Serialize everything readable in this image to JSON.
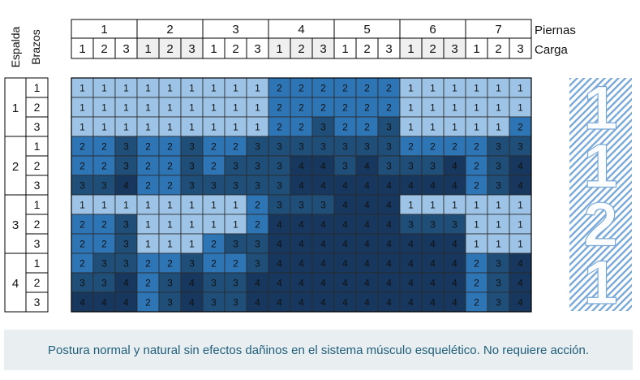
{
  "chart_data": {
    "type": "heatmap",
    "col_header_labels": {
      "legs": "Piernas",
      "load": "Carga"
    },
    "row_header_labels": {
      "back": "Espalda",
      "arms": "Brazos"
    },
    "legs_values": [
      "1",
      "2",
      "3",
      "4",
      "5",
      "6",
      "7"
    ],
    "load_values": [
      "1",
      "2",
      "3"
    ],
    "back_values": [
      "1",
      "2",
      "3",
      "4"
    ],
    "arms_values": [
      "1",
      "2",
      "3"
    ],
    "matrix": [
      [
        1,
        1,
        1,
        1,
        1,
        1,
        1,
        1,
        1,
        2,
        2,
        2,
        2,
        2,
        2,
        1,
        1,
        1,
        1,
        1,
        1
      ],
      [
        1,
        1,
        1,
        1,
        1,
        1,
        1,
        1,
        1,
        2,
        2,
        2,
        2,
        2,
        2,
        1,
        1,
        1,
        1,
        1,
        1
      ],
      [
        1,
        1,
        1,
        1,
        1,
        1,
        1,
        1,
        1,
        2,
        2,
        3,
        2,
        2,
        3,
        1,
        1,
        1,
        1,
        1,
        2
      ],
      [
        2,
        2,
        3,
        2,
        2,
        3,
        2,
        2,
        3,
        3,
        3,
        3,
        3,
        3,
        3,
        2,
        2,
        2,
        2,
        3,
        3
      ],
      [
        2,
        2,
        3,
        2,
        2,
        3,
        2,
        3,
        3,
        3,
        4,
        4,
        3,
        4,
        3,
        3,
        3,
        4,
        2,
        3,
        4
      ],
      [
        3,
        3,
        4,
        2,
        2,
        3,
        3,
        3,
        3,
        3,
        4,
        4,
        4,
        4,
        4,
        4,
        4,
        4,
        2,
        3,
        4
      ],
      [
        1,
        1,
        1,
        1,
        1,
        1,
        1,
        1,
        2,
        3,
        3,
        3,
        4,
        4,
        4,
        1,
        1,
        1,
        1,
        1,
        1
      ],
      [
        2,
        2,
        3,
        1,
        1,
        1,
        1,
        1,
        2,
        4,
        4,
        4,
        4,
        4,
        4,
        3,
        3,
        3,
        1,
        1,
        1
      ],
      [
        2,
        2,
        3,
        1,
        1,
        1,
        2,
        3,
        3,
        4,
        4,
        4,
        4,
        4,
        4,
        4,
        4,
        4,
        1,
        1,
        1
      ],
      [
        2,
        3,
        3,
        2,
        2,
        3,
        2,
        2,
        3,
        4,
        4,
        4,
        4,
        4,
        4,
        4,
        4,
        4,
        2,
        3,
        4
      ],
      [
        3,
        3,
        4,
        2,
        3,
        4,
        3,
        3,
        4,
        4,
        4,
        4,
        4,
        4,
        4,
        4,
        4,
        4,
        2,
        3,
        4
      ],
      [
        4,
        4,
        4,
        2,
        3,
        4,
        3,
        3,
        4,
        4,
        4,
        4,
        4,
        4,
        4,
        4,
        4,
        4,
        2,
        3,
        4
      ]
    ],
    "colors": {
      "1": "#9dc3e6",
      "2": "#2e75b6",
      "3": "#1f4e79",
      "4": "#17375e"
    },
    "text_colors": {
      "1": "#111111",
      "2": "#111111",
      "3": "#111111",
      "4": "#111111"
    },
    "current_code": [
      "1",
      "1",
      "2",
      "1"
    ],
    "grid": true
  },
  "message": "Postura normal y natural sin efectos dañinos en el sistema músculo esquelético. No requiere acción."
}
